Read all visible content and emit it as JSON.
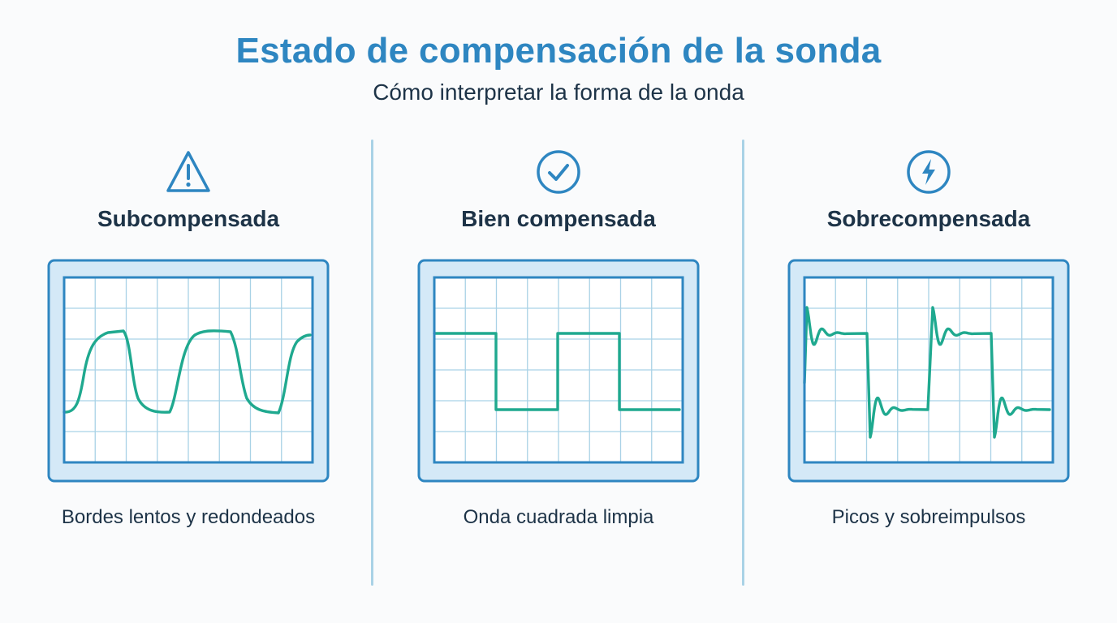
{
  "header": {
    "title": "Estado de compensación de la sonda",
    "subtitle": "Cómo interpretar la forma de la onda"
  },
  "colors": {
    "title": "#2e86c1",
    "text": "#1d3347",
    "frame": "#2e86c1",
    "frame_fill": "#d4e9f7",
    "grid": "#a9d2e6",
    "trace": "#1fa98f",
    "divider": "#a9d2e6"
  },
  "panels": [
    {
      "id": "under",
      "icon": "warning-triangle-icon",
      "heading": "Subcompensada",
      "caption": "Bordes lentos y redondeados",
      "waveform": "rounded-square"
    },
    {
      "id": "correct",
      "icon": "check-circle-icon",
      "heading": "Bien compensada",
      "caption": "Onda cuadrada limpia",
      "waveform": "clean-square"
    },
    {
      "id": "over",
      "icon": "lightning-circle-icon",
      "heading": "Sobrecompensada",
      "caption": "Picos y sobreimpulsos",
      "waveform": "overshoot-square"
    }
  ]
}
